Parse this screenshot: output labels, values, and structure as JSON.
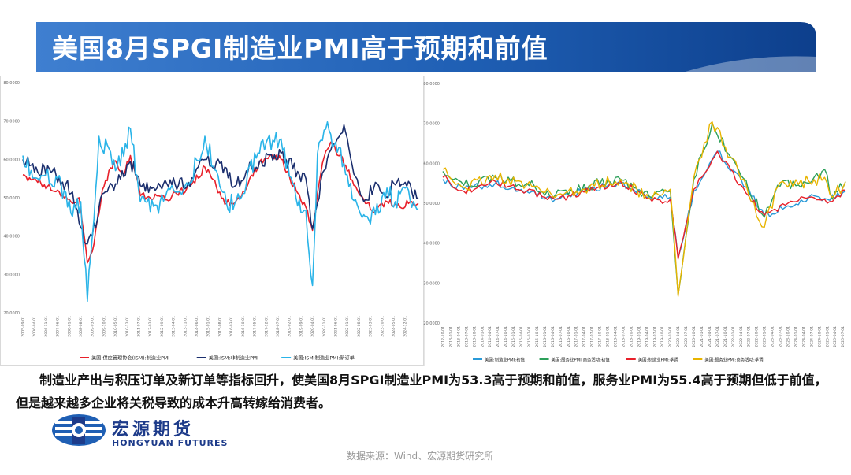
{
  "title": "美国8月SPGI制造业PMI高于预期和前值",
  "caption": "制造业产出与积压订单及新订单等指标回升，使美国8月SPGI制造业PMI为53.3高于预期和前值，服务业PMI为55.4高于预期但低于前值，但是越来越多企业将关税导致的成本升高转嫁给消费者。",
  "logo": {
    "cn": "宏源期货",
    "en": "HONGYUAN FUTURES"
  },
  "source": "数据来源：Wind、宏源期货研究所",
  "colors": {
    "title_band": "#1f5fb4",
    "title_band_dark": "#0d3f8c",
    "red": "#e8202a",
    "navy": "#1b2f6e",
    "cyan": "#2ab4e8",
    "green": "#2ca05a",
    "yellow": "#e8b400",
    "blue": "#2a9ad8"
  },
  "chart_data": [
    {
      "type": "line",
      "ylim": [
        20,
        80
      ],
      "yticks": [
        "20.0000",
        "30.0000",
        "40.0000",
        "50.0000",
        "60.0000",
        "70.0000",
        "80.0000"
      ],
      "x_start": "2005-09",
      "x_end": "2025-08",
      "x_ticks": [
        "2005-09-01",
        "2006-04-01",
        "2006-11-01",
        "2007-06-01",
        "2008-01-01",
        "2008-08-01",
        "2009-03-01",
        "2009-10-01",
        "2010-05-01",
        "2010-12-01",
        "2011-07-01",
        "2012-02-01",
        "2012-09-01",
        "2013-04-01",
        "2013-11-01",
        "2014-06-01",
        "2015-01-01",
        "2015-08-01",
        "2016-03-01",
        "2016-10-01",
        "2017-05-01",
        "2017-12-01",
        "2018-07-01",
        "2019-02-01",
        "2019-09-01",
        "2020-04-01",
        "2020-11-01",
        "2021-06-01",
        "2022-01-01",
        "2022-08-01",
        "2023-03-01",
        "2023-10-01",
        "2024-05-01",
        "2024-12-01"
      ],
      "legend": [
        "美国:供应管理协会(ISM):制造业PMI",
        "美国:ISM:非制造业PMI",
        "美国:ISM:制造业PMI:新订单"
      ],
      "series": [
        {
          "name": "美国:供应管理协会(ISM):制造业PMI",
          "color": "red",
          "points": [
            [
              "2005-09",
              56.0
            ],
            [
              "2006-06",
              54.0
            ],
            [
              "2007-06",
              52.0
            ],
            [
              "2008-03",
              48.5
            ],
            [
              "2008-07",
              50.0
            ],
            [
              "2008-12",
              33.0
            ],
            [
              "2009-03",
              36.0
            ],
            [
              "2009-09",
              52.0
            ],
            [
              "2010-04",
              59.5
            ],
            [
              "2010-10",
              56.0
            ],
            [
              "2011-02",
              61.0
            ],
            [
              "2011-08",
              50.5
            ],
            [
              "2012-06",
              50.5
            ],
            [
              "2012-11",
              49.5
            ],
            [
              "2013-06",
              51.0
            ],
            [
              "2014-02",
              53.0
            ],
            [
              "2014-11",
              58.0
            ],
            [
              "2015-12",
              48.5
            ],
            [
              "2016-08",
              50.0
            ],
            [
              "2017-09",
              60.0
            ],
            [
              "2018-08",
              61.0
            ],
            [
              "2019-06",
              52.0
            ],
            [
              "2019-12",
              47.5
            ],
            [
              "2020-04",
              41.5
            ],
            [
              "2020-10",
              59.0
            ],
            [
              "2021-03",
              64.5
            ],
            [
              "2021-12",
              58.5
            ],
            [
              "2022-06",
              53.0
            ],
            [
              "2022-12",
              48.5
            ],
            [
              "2023-06",
              46.5
            ],
            [
              "2024-01",
              49.0
            ],
            [
              "2024-09",
              47.5
            ],
            [
              "2025-03",
              49.0
            ],
            [
              "2025-08",
              48.5
            ]
          ]
        },
        {
          "name": "美国:ISM:非制造业PMI",
          "color": "navy",
          "points": [
            [
              "2005-09",
              60.0
            ],
            [
              "2006-05",
              58.0
            ],
            [
              "2007-05",
              56.0
            ],
            [
              "2008-03",
              51.5
            ],
            [
              "2008-11",
              38.0
            ],
            [
              "2009-03",
              40.0
            ],
            [
              "2009-09",
              51.0
            ],
            [
              "2010-06",
              53.5
            ],
            [
              "2011-02",
              59.5
            ],
            [
              "2011-09",
              53.0
            ],
            [
              "2012-06",
              52.5
            ],
            [
              "2013-05",
              53.5
            ],
            [
              "2014-01",
              54.0
            ],
            [
              "2014-08",
              59.5
            ],
            [
              "2015-08",
              59.0
            ],
            [
              "2016-05",
              53.0
            ],
            [
              "2016-12",
              57.0
            ],
            [
              "2017-09",
              59.5
            ],
            [
              "2018-09",
              61.6
            ],
            [
              "2019-08",
              56.0
            ],
            [
              "2019-12",
              55.0
            ],
            [
              "2020-04",
              41.8
            ],
            [
              "2020-10",
              56.5
            ],
            [
              "2021-11",
              69.0
            ],
            [
              "2022-06",
              55.5
            ],
            [
              "2022-12",
              49.5
            ],
            [
              "2023-06",
              54.0
            ],
            [
              "2023-12",
              50.5
            ],
            [
              "2024-05",
              53.8
            ],
            [
              "2024-12",
              54.0
            ],
            [
              "2025-04",
              51.6
            ],
            [
              "2025-08",
              50.0
            ]
          ]
        },
        {
          "name": "美国:ISM:制造业PMI:新订单",
          "color": "cyan",
          "points": [
            [
              "2005-09",
              61.0
            ],
            [
              "2006-06",
              55.0
            ],
            [
              "2007-06",
              55.0
            ],
            [
              "2008-02",
              46.0
            ],
            [
              "2008-08",
              49.0
            ],
            [
              "2008-12",
              23.0
            ],
            [
              "2009-03",
              40.0
            ],
            [
              "2009-07",
              66.0
            ],
            [
              "2010-06",
              58.0
            ],
            [
              "2011-02",
              68.0
            ],
            [
              "2011-08",
              49.0
            ],
            [
              "2012-06",
              48.0
            ],
            [
              "2012-11",
              50.0
            ],
            [
              "2013-06",
              51.5
            ],
            [
              "2014-02",
              54.0
            ],
            [
              "2014-11",
              66.0
            ],
            [
              "2015-12",
              48.5
            ],
            [
              "2016-08",
              49.5
            ],
            [
              "2017-09",
              64.6
            ],
            [
              "2018-08",
              65.0
            ],
            [
              "2019-06",
              50.0
            ],
            [
              "2019-12",
              46.8
            ],
            [
              "2020-04",
              27.1
            ],
            [
              "2020-07",
              61.5
            ],
            [
              "2020-12",
              67.9
            ],
            [
              "2021-06",
              64.5
            ],
            [
              "2022-06",
              49.5
            ],
            [
              "2022-12",
              45.0
            ],
            [
              "2023-06",
              45.6
            ],
            [
              "2024-01",
              52.5
            ],
            [
              "2024-06",
              49.0
            ],
            [
              "2024-12",
              52.5
            ],
            [
              "2025-04",
              47.5
            ],
            [
              "2025-08",
              47.0
            ]
          ]
        }
      ]
    },
    {
      "type": "line",
      "ylim": [
        20,
        80
      ],
      "yticks": [
        "20.0000",
        "30.0000",
        "40.0000",
        "50.0000",
        "60.0000",
        "70.0000",
        "80.0000"
      ],
      "x_start": "2012-10",
      "x_end": "2025-08",
      "legend": [
        "美国:制造业PMI:初值",
        "美国:服务业PMI:商务活动:初值",
        "美国:制造业PMI:季调",
        "美国:服务业PMI:商务活动:季调"
      ],
      "series": [
        {
          "name": "美国:制造业PMI:初值",
          "color": "blue",
          "points": [
            [
              "2012-10",
              56.0
            ],
            [
              "2013-06",
              53.5
            ],
            [
              "2014-06",
              55.0
            ],
            [
              "2015-06",
              53.0
            ],
            [
              "2016-05",
              51.0
            ],
            [
              "2017-06",
              53.5
            ],
            [
              "2018-06",
              55.0
            ],
            [
              "2019-06",
              51.0
            ],
            [
              "2020-01",
              51.5
            ],
            [
              "2020-04",
              36.5
            ],
            [
              "2020-10",
              53.0
            ],
            [
              "2021-07",
              63.0
            ],
            [
              "2022-06",
              54.0
            ],
            [
              "2023-01",
              47.0
            ],
            [
              "2023-09",
              49.0
            ],
            [
              "2024-06",
              51.5
            ],
            [
              "2025-01",
              51.0
            ],
            [
              "2025-08",
              53.0
            ]
          ]
        },
        {
          "name": "美国:服务业PMI:商务活动:初值",
          "color": "green",
          "points": [
            [
              "2012-10",
              58.0
            ],
            [
              "2013-06",
              54.5
            ],
            [
              "2014-06",
              56.5
            ],
            [
              "2015-06",
              55.0
            ],
            [
              "2016-05",
              52.0
            ],
            [
              "2017-06",
              54.5
            ],
            [
              "2018-06",
              56.0
            ],
            [
              "2019-06",
              51.5
            ],
            [
              "2020-01",
              53.0
            ],
            [
              "2020-04",
              27.0
            ],
            [
              "2020-10",
              56.0
            ],
            [
              "2021-05",
              70.0
            ],
            [
              "2022-03",
              58.5
            ],
            [
              "2023-01",
              46.5
            ],
            [
              "2023-06",
              54.5
            ],
            [
              "2024-06",
              55.0
            ],
            [
              "2024-12",
              58.5
            ],
            [
              "2025-03",
              51.0
            ],
            [
              "2025-08",
              55.4
            ]
          ]
        },
        {
          "name": "美国:制造业PMI:季调",
          "color": "red",
          "points": [
            [
              "2012-10",
              56.5
            ],
            [
              "2013-06",
              53.0
            ],
            [
              "2014-06",
              55.5
            ],
            [
              "2015-06",
              53.0
            ],
            [
              "2016-05",
              51.0
            ],
            [
              "2017-06",
              53.0
            ],
            [
              "2018-06",
              55.5
            ],
            [
              "2019-06",
              50.5
            ],
            [
              "2020-01",
              51.0
            ],
            [
              "2020-04",
              36.0
            ],
            [
              "2020-10",
              53.5
            ],
            [
              "2021-07",
              63.0
            ],
            [
              "2022-06",
              52.5
            ],
            [
              "2023-01",
              47.0
            ],
            [
              "2023-09",
              49.5
            ],
            [
              "2024-06",
              51.5
            ],
            [
              "2025-01",
              50.0
            ],
            [
              "2025-08",
              53.3
            ]
          ]
        },
        {
          "name": "美国:服务业PMI:商务活动:季调",
          "color": "yellow",
          "points": [
            [
              "2012-10",
              58.5
            ],
            [
              "2013-06",
              54.0
            ],
            [
              "2014-06",
              57.0
            ],
            [
              "2015-06",
              54.5
            ],
            [
              "2016-05",
              51.5
            ],
            [
              "2017-06",
              54.0
            ],
            [
              "2018-06",
              56.0
            ],
            [
              "2019-06",
              51.0
            ],
            [
              "2020-01",
              53.5
            ],
            [
              "2020-04",
              26.7
            ],
            [
              "2020-10",
              56.5
            ],
            [
              "2021-05",
              70.4
            ],
            [
              "2022-03",
              58.0
            ],
            [
              "2023-01",
              44.0
            ],
            [
              "2023-06",
              54.0
            ],
            [
              "2024-06",
              55.5
            ],
            [
              "2024-12",
              56.5
            ],
            [
              "2025-03",
              51.5
            ],
            [
              "2025-08",
              55.4
            ]
          ]
        }
      ]
    }
  ]
}
